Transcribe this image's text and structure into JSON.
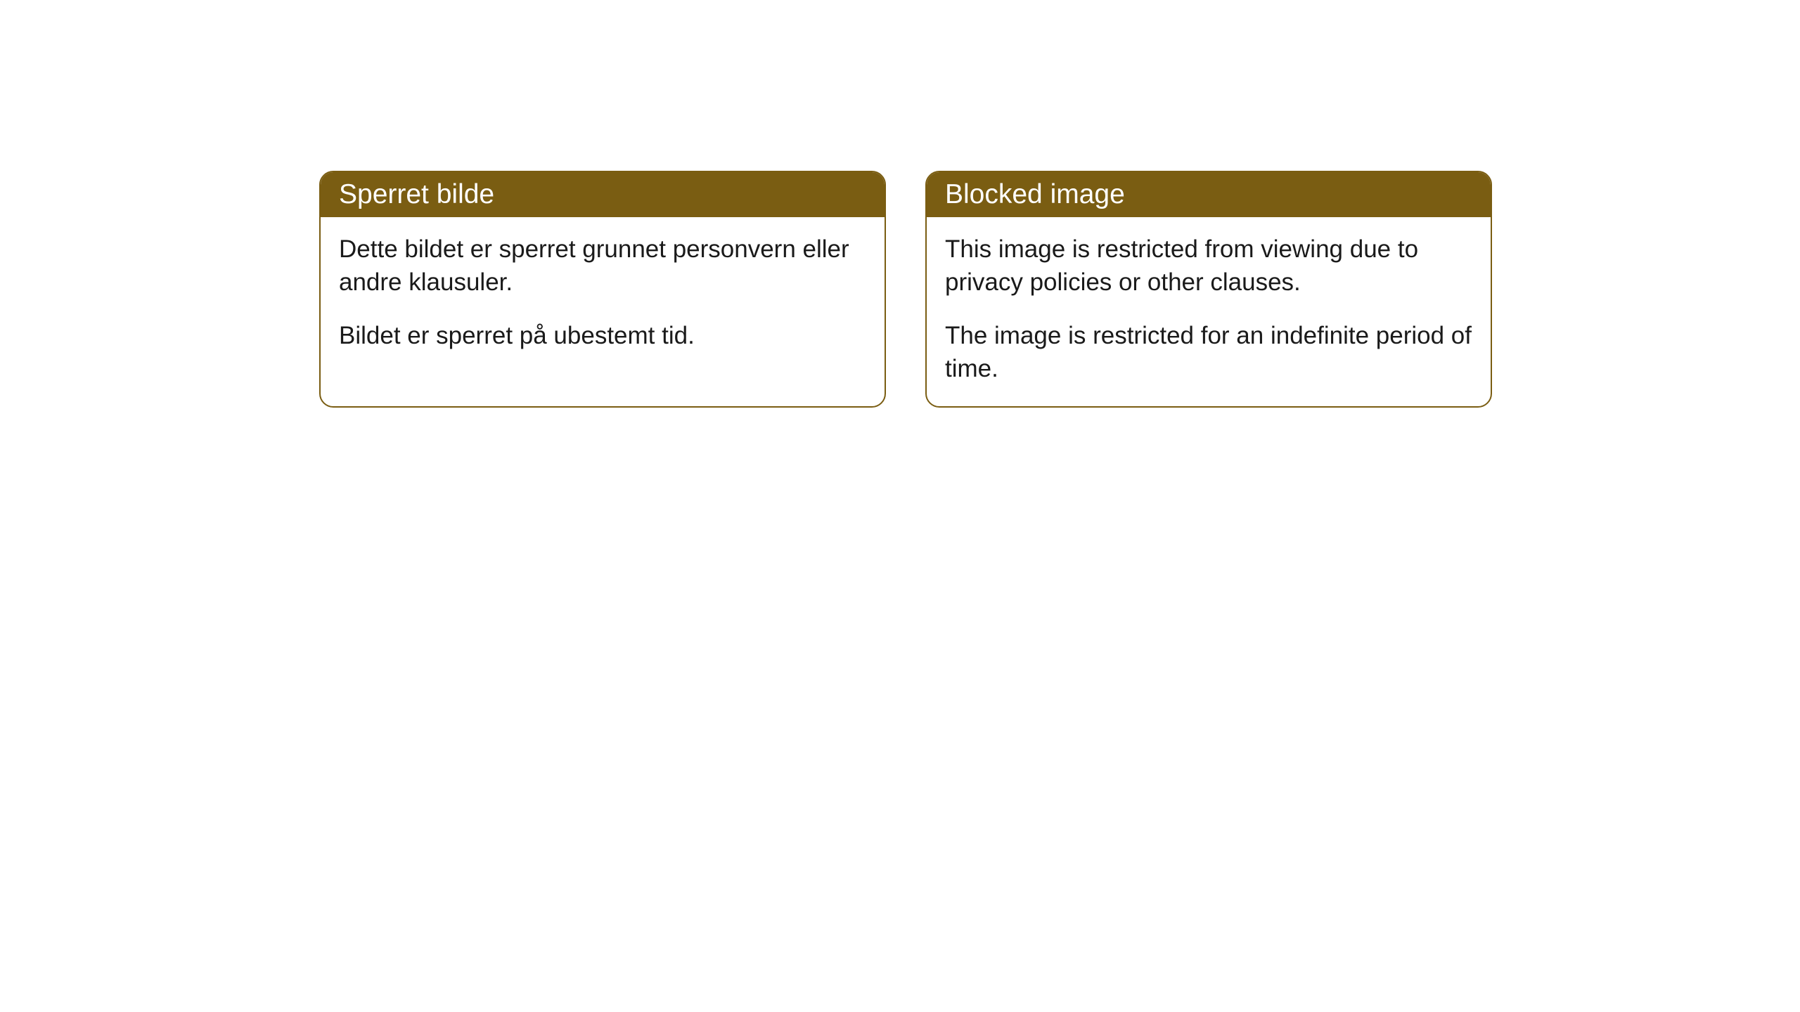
{
  "cards": [
    {
      "title": "Sperret bilde",
      "paragraph1": "Dette bildet er sperret grunnet personvern eller andre klausuler.",
      "paragraph2": "Bildet er sperret på ubestemt tid."
    },
    {
      "title": "Blocked image",
      "paragraph1": "This image is restricted from viewing due to privacy policies or other clauses.",
      "paragraph2": "The image is restricted for an indefinite period of time."
    }
  ],
  "styling": {
    "header_bg_color": "#7a5d12",
    "header_text_color": "#ffffff",
    "border_color": "#7a5d12",
    "body_bg_color": "#ffffff",
    "body_text_color": "#1a1a1a",
    "border_radius": 20,
    "header_fontsize": 39,
    "body_fontsize": 35
  }
}
